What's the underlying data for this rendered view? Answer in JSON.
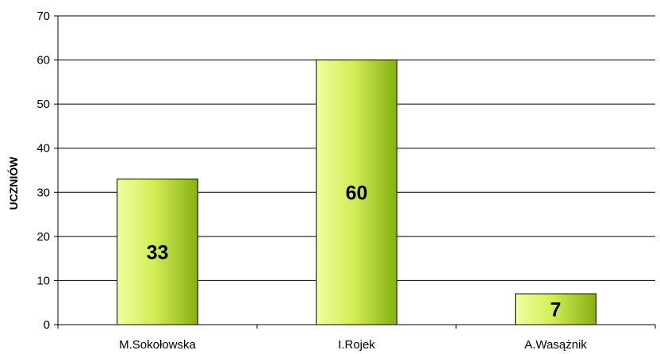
{
  "chart_data": {
    "type": "bar",
    "title": "",
    "xlabel": "",
    "ylabel": "UCZNIÓW",
    "categories": [
      "M.Sokołowska",
      "I.Rojek",
      "A.Wasążnik"
    ],
    "values": [
      33,
      60,
      7
    ],
    "data_labels": [
      "33",
      "60",
      "7"
    ],
    "ylim": [
      0,
      70
    ],
    "yticks": [
      0,
      10,
      20,
      30,
      40,
      50,
      60,
      70
    ],
    "grid": true,
    "legend": "none",
    "colors": {
      "bar_light": "#f0ffa0",
      "bar_mid": "#d2ee58",
      "bar_dark": "#86b010",
      "bar_edge": "#000000",
      "grid": "#000000",
      "axis": "#000000"
    }
  }
}
